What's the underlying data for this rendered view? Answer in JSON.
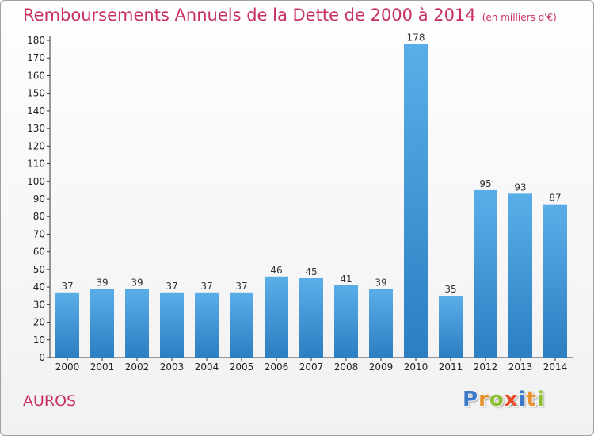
{
  "header": {
    "title": "Remboursements Annuels de la Dette de 2000 à 2014",
    "unit": "(en milliers d'€)"
  },
  "footer": {
    "commune": "AUROS",
    "logo_letters": [
      "P",
      "r",
      "o",
      "x",
      "i",
      "t",
      "i"
    ]
  },
  "colors": {
    "title": "#c8305e",
    "bar_light": "#5aaee8",
    "bar_dark": "#2b7fc2",
    "logo": [
      "#3a78c8",
      "#e8902a",
      "#8cbf2e",
      "#e84a2a",
      "#3a78c8",
      "#e8902a",
      "#8cbf2e"
    ]
  },
  "chart_data": {
    "type": "bar",
    "categories": [
      "2000",
      "2001",
      "2002",
      "2003",
      "2004",
      "2005",
      "2006",
      "2007",
      "2008",
      "2009",
      "2010",
      "2011",
      "2012",
      "2013",
      "2014"
    ],
    "values": [
      37,
      39,
      39,
      37,
      37,
      37,
      46,
      45,
      41,
      39,
      178,
      35,
      95,
      93,
      87
    ],
    "ylim": [
      0,
      180
    ],
    "yticks": [
      0,
      10,
      20,
      30,
      40,
      50,
      60,
      70,
      80,
      90,
      100,
      110,
      120,
      130,
      140,
      150,
      160,
      170,
      180
    ],
    "grid": false,
    "data_labels": true
  }
}
